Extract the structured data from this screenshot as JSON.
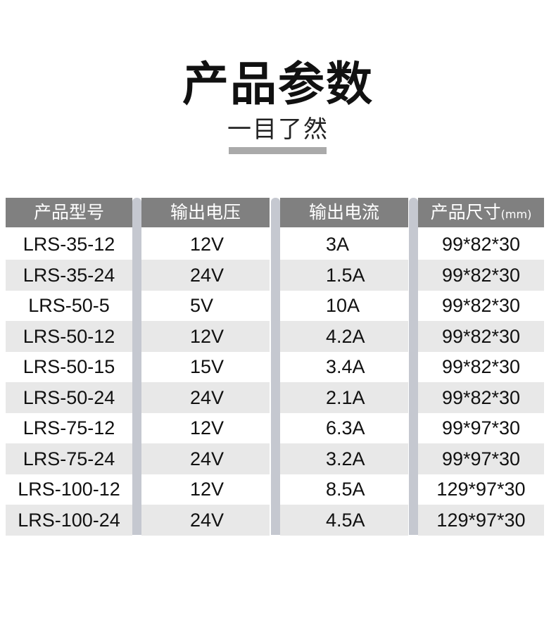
{
  "title": "产品参数",
  "subtitle": "一目了然",
  "table": {
    "headers": [
      "产品型号",
      "输出电压",
      "输出电流",
      "产品尺寸"
    ],
    "size_unit": "(mm)",
    "rows": [
      [
        "LRS-35-12",
        "12V",
        "3A",
        "99*82*30"
      ],
      [
        "LRS-35-24",
        "24V",
        "1.5A",
        "99*82*30"
      ],
      [
        "LRS-50-5",
        "5V",
        "10A",
        "99*82*30"
      ],
      [
        "LRS-50-12",
        "12V",
        "4.2A",
        "99*82*30"
      ],
      [
        "LRS-50-15",
        "15V",
        "3.4A",
        "99*82*30"
      ],
      [
        "LRS-50-24",
        "24V",
        "2.1A",
        "99*82*30"
      ],
      [
        "LRS-75-12",
        "12V",
        "6.3A",
        "99*97*30"
      ],
      [
        "LRS-75-24",
        "24V",
        "3.2A",
        "99*97*30"
      ],
      [
        "LRS-100-12",
        "12V",
        "8.5A",
        "129*97*30"
      ],
      [
        "LRS-100-24",
        "24V",
        "4.5A",
        "129*97*30"
      ]
    ]
  },
  "colors": {
    "header_bg": "#808080",
    "alt_row": "#e8e8e8",
    "separator": "#c5c8d0"
  }
}
